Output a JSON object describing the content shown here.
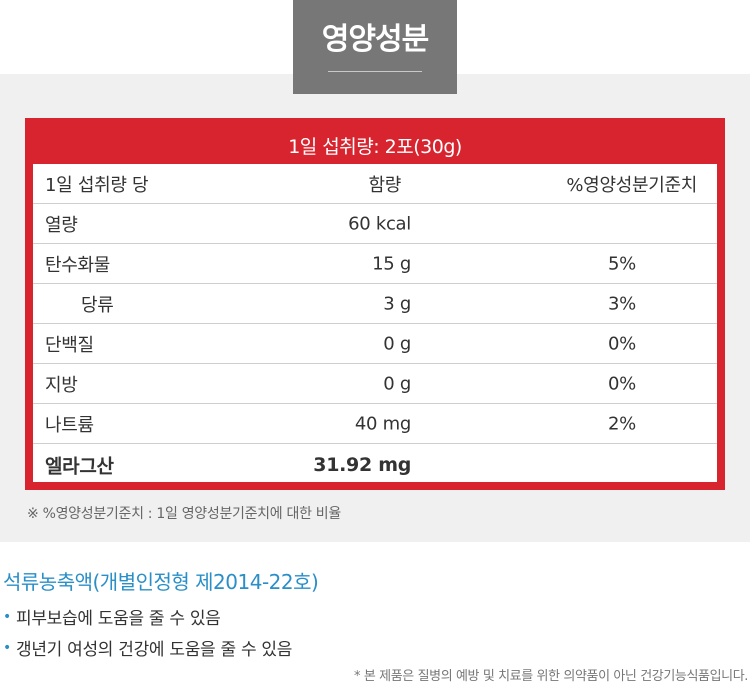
{
  "header": {
    "title": "영양성분"
  },
  "nutrition": {
    "serving": "1일 섭취량: 2포(30g)",
    "columns": {
      "name": "1일 섭취량 당",
      "amount": "함량",
      "percent": "%영양성분기준치"
    },
    "rows": [
      {
        "name": "열량",
        "amount": "60 kcal",
        "percent": ""
      },
      {
        "name": "탄수화물",
        "amount": "15 g",
        "percent": "5%"
      },
      {
        "name": "당류",
        "amount": "3 g",
        "percent": "3%"
      },
      {
        "name": "단백질",
        "amount": "0 g",
        "percent": "0%"
      },
      {
        "name": "지방",
        "amount": "0 g",
        "percent": "0%"
      },
      {
        "name": "나트륨",
        "amount": "40 mg",
        "percent": "2%"
      },
      {
        "name": "엘라그산",
        "amount": "31.92 mg",
        "percent": ""
      }
    ],
    "footnote": "※ %영양성분기준치 : 1일 영양성분기준치에 대한 비율"
  },
  "product": {
    "title": "석류농축액(개별인정형 제2014-22호)",
    "benefits": [
      "피부보습에 도움을 줄 수 있음",
      "갱년기 여성의 건강에 도움을 줄 수 있음"
    ]
  },
  "disclaimer": "* 본 제품은 질병의 예방 및 치료를 위한 의약품이 아닌 건강기능식품입니다.",
  "colors": {
    "accent": "#d7242f",
    "title_box": "#777777",
    "blue": "#2a8fc7",
    "panel": "#f0f0f0"
  },
  "icons": {
    "bullet": "bullet-dot-icon"
  }
}
